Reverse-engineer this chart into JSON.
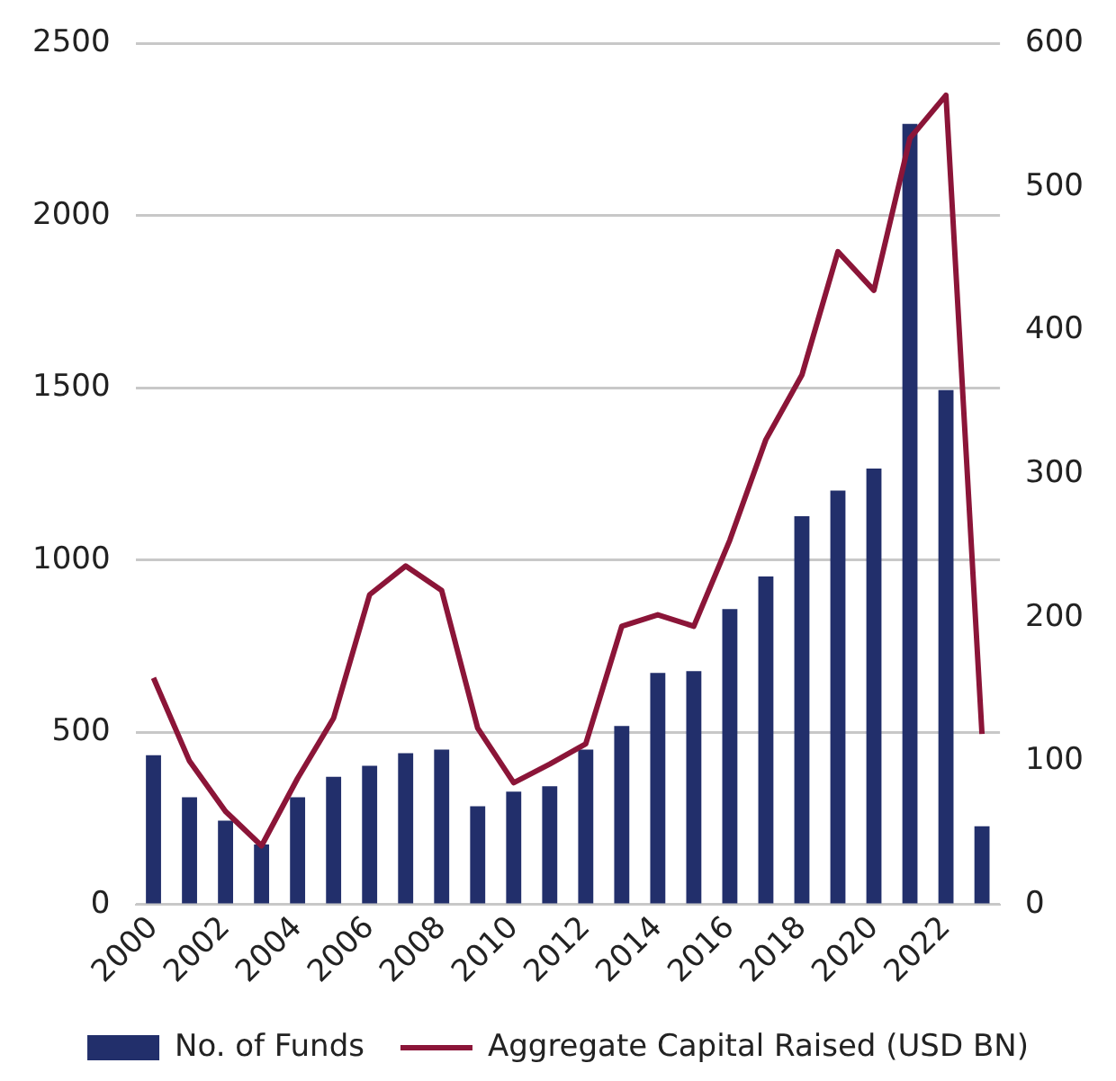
{
  "chart_data": {
    "type": "bar",
    "categories": [
      "2000",
      null,
      "2002",
      null,
      "2004",
      null,
      "2006",
      null,
      "2008",
      null,
      "2010",
      null,
      "2012",
      null,
      "2014",
      null,
      "2016",
      null,
      "2018",
      null,
      "2020",
      null,
      "2022",
      null
    ],
    "series": [
      {
        "name": "No. of Funds",
        "color": "#222f6b",
        "values": [
          434,
          312,
          244,
          175,
          312,
          371,
          403,
          440,
          450,
          286,
          328,
          344,
          450,
          519,
          673,
          678,
          858,
          953,
          1128,
          1202,
          1266,
          2267,
          1494,
          228
        ]
      },
      {
        "name": "Aggregate Capital Raised (USD BN)",
        "type": "line",
        "axis": "y2",
        "color": "#8b1538",
        "values": [
          158,
          100,
          65,
          41,
          88,
          130,
          216,
          236,
          219,
          123,
          85,
          98,
          112,
          194,
          202,
          194,
          254,
          324,
          369,
          455,
          428,
          534,
          564,
          119
        ]
      }
    ],
    "ylim": [
      0,
      2500
    ],
    "yticks": [
      0,
      500,
      1000,
      1500,
      2000,
      2500
    ],
    "y2lim": [
      0,
      600
    ],
    "y2ticks": [
      0,
      100,
      200,
      300,
      400,
      500,
      600
    ],
    "grid": "y",
    "legend": "bottom",
    "marker": "none"
  }
}
